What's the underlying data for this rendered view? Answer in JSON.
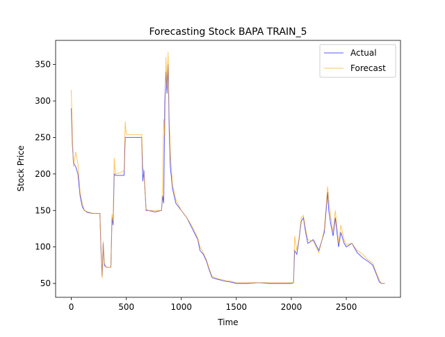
{
  "chart_data": {
    "type": "line",
    "title": "Forecasting Stock BAPA TRAIN_5",
    "x_label": "Time",
    "y_label": "Stock Price",
    "x": [
      0,
      10,
      20,
      40,
      60,
      80,
      100,
      120,
      150,
      200,
      260,
      270,
      280,
      290,
      300,
      320,
      360,
      370,
      380,
      390,
      400,
      450,
      480,
      490,
      500,
      600,
      640,
      650,
      660,
      680,
      700,
      760,
      820,
      830,
      840,
      850,
      860,
      870,
      880,
      890,
      900,
      920,
      950,
      1000,
      1050,
      1100,
      1150,
      1170,
      1200,
      1230,
      1250,
      1280,
      1320,
      1400,
      1450,
      1500,
      1600,
      1700,
      1800,
      1900,
      2000,
      2020,
      2030,
      2050,
      2070,
      2090,
      2110,
      2130,
      2150,
      2200,
      2250,
      2280,
      2300,
      2330,
      2340,
      2360,
      2380,
      2400,
      2430,
      2450,
      2480,
      2500,
      2550,
      2600,
      2650,
      2700,
      2740,
      2780,
      2800,
      2820,
      2850
    ],
    "series": [
      {
        "name": "Actual",
        "color": "#0000ff",
        "values": [
          290,
          240,
          215,
          210,
          200,
          170,
          155,
          150,
          147,
          146,
          146,
          95,
          60,
          105,
          75,
          72,
          72,
          140,
          130,
          200,
          198,
          198,
          198,
          250,
          250,
          250,
          250,
          190,
          205,
          150,
          150,
          148,
          150,
          170,
          160,
          300,
          340,
          310,
          350,
          260,
          210,
          180,
          160,
          150,
          140,
          125,
          110,
          95,
          90,
          80,
          70,
          58,
          56,
          53,
          52,
          50,
          50,
          51,
          50,
          50,
          50,
          51,
          95,
          90,
          110,
          135,
          140,
          120,
          105,
          110,
          95,
          110,
          120,
          175,
          150,
          130,
          115,
          140,
          100,
          120,
          105,
          100,
          105,
          92,
          85,
          80,
          75,
          60,
          52,
          50,
          50
        ]
      },
      {
        "name": "Forecast",
        "color": "#ffa500",
        "values": [
          315,
          250,
          210,
          230,
          215,
          175,
          160,
          150,
          148,
          146,
          146,
          100,
          57,
          108,
          78,
          72,
          72,
          145,
          135,
          222,
          200,
          202,
          205,
          272,
          254,
          254,
          254,
          210,
          200,
          152,
          150,
          150,
          150,
          185,
          275,
          250,
          360,
          320,
          367,
          280,
          230,
          185,
          165,
          150,
          140,
          128,
          112,
          100,
          92,
          82,
          72,
          60,
          57,
          54,
          53,
          51,
          51,
          51,
          51,
          51,
          51,
          51,
          115,
          95,
          112,
          140,
          143,
          125,
          110,
          108,
          92,
          110,
          125,
          183,
          165,
          140,
          120,
          150,
          105,
          130,
          110,
          103,
          105,
          95,
          90,
          82,
          78,
          62,
          55,
          50,
          50
        ]
      }
    ],
    "xlim": [
      -142.5,
      2992.5
    ],
    "ylim": [
      31,
      383
    ],
    "xticks": [
      0,
      500,
      1000,
      1500,
      2000,
      2500
    ],
    "yticks": [
      50,
      100,
      150,
      200,
      250,
      300,
      350
    ],
    "legend": "upper right"
  }
}
